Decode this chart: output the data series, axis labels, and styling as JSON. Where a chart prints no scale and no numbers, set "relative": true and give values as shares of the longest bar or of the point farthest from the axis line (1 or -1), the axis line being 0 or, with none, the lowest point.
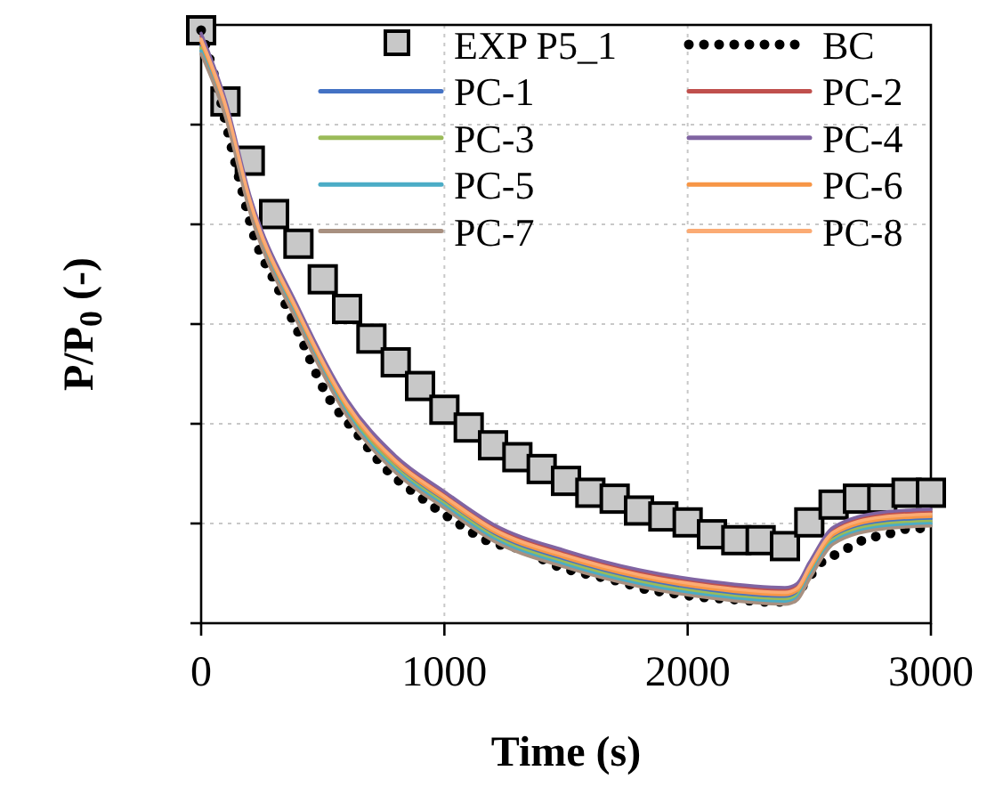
{
  "chart_data": {
    "type": "line",
    "xlabel": "Time (s)",
    "ylabel": "P/P$_{0}$ (-)",
    "relative": true,
    "xlim": [
      0,
      3000
    ],
    "xticks": [
      0,
      1000,
      2000,
      3000
    ],
    "grid": true,
    "legend": "top right",
    "line_style": "solid",
    "series": [
      {
        "name": "EXP P5_1",
        "type": "scatter",
        "marker": "square",
        "color": "#c8c8c8",
        "x": [
          0,
          100,
          200,
          300,
          400,
          500,
          600,
          700,
          800,
          900,
          1000,
          1100,
          1200,
          1300,
          1400,
          1500,
          1600,
          1700,
          1800,
          1900,
          2000,
          2100,
          2200,
          2300,
          2400,
          2500,
          2600,
          2700,
          2800,
          2900,
          3000
        ],
        "values": [
          1,
          0.88,
          0.78,
          0.69,
          0.64,
          0.58,
          0.53,
          0.48,
          0.44,
          0.4,
          0.36,
          0.33,
          0.3,
          0.28,
          0.26,
          0.24,
          0.22,
          0.21,
          0.19,
          0.18,
          0.17,
          0.15,
          0.14,
          0.14,
          0.13,
          0.17,
          0.2,
          0.21,
          0.21,
          0.22,
          0.22
        ]
      },
      {
        "name": "BC",
        "type": "line",
        "line_style": "dotted",
        "color": "#000000",
        "x": [
          0,
          50,
          150,
          220,
          310,
          400,
          510,
          640,
          760,
          910,
          1050,
          1170,
          1350,
          1440,
          1540,
          1640,
          1730,
          1830,
          1930,
          2030,
          2120,
          2220,
          2320,
          2410,
          2480,
          2540,
          2630,
          2720,
          2820,
          2920,
          3000
        ],
        "values": [
          1,
          0.93,
          0.76,
          0.65,
          0.57,
          0.49,
          0.39,
          0.32,
          0.26,
          0.21,
          0.17,
          0.14,
          0.12,
          0.1,
          0.087,
          0.078,
          0.069,
          0.057,
          0.051,
          0.045,
          0.042,
          0.039,
          0.036,
          0.036,
          0.066,
          0.099,
          0.12,
          0.14,
          0.15,
          0.16,
          0.16
        ]
      },
      {
        "name": "PC-1",
        "color": "#4472c4",
        "x": [
          0,
          100,
          200,
          400,
          600,
          800,
          1000,
          1200,
          1500,
          1800,
          2100,
          2400,
          2450,
          2500,
          2600,
          2800,
          3000
        ],
        "values": [
          0.975,
          0.866,
          0.706,
          0.516,
          0.361,
          0.266,
          0.206,
          0.151,
          0.106,
          0.074,
          0.054,
          0.044,
          0.051,
          0.086,
          0.146,
          0.171,
          0.176
        ]
      },
      {
        "name": "PC-2",
        "color": "#c0504d",
        "x": [
          0,
          100,
          200,
          400,
          600,
          800,
          1000,
          1200,
          1500,
          1800,
          2100,
          2400,
          2450,
          2500,
          2600,
          2800,
          3000
        ],
        "values": [
          0.99,
          0.878,
          0.718,
          0.528,
          0.373,
          0.278,
          0.218,
          0.163,
          0.118,
          0.086,
          0.066,
          0.056,
          0.063,
          0.098,
          0.158,
          0.183,
          0.188
        ]
      },
      {
        "name": "PC-3",
        "color": "#9bbb59",
        "x": [
          0,
          100,
          200,
          400,
          600,
          800,
          1000,
          1200,
          1500,
          1800,
          2100,
          2400,
          2450,
          2500,
          2600,
          2800,
          3000
        ],
        "values": [
          0.97,
          0.862,
          0.702,
          0.512,
          0.357,
          0.262,
          0.202,
          0.147,
          0.102,
          0.07,
          0.05,
          0.04,
          0.047,
          0.082,
          0.142,
          0.167,
          0.172
        ]
      },
      {
        "name": "PC-4",
        "color": "#8064a2",
        "x": [
          0,
          100,
          200,
          400,
          600,
          800,
          1000,
          1200,
          1500,
          1800,
          2100,
          2400,
          2450,
          2500,
          2600,
          2800,
          3000
        ],
        "values": [
          0.995,
          0.882,
          0.722,
          0.532,
          0.377,
          0.282,
          0.222,
          0.167,
          0.122,
          0.09,
          0.07,
          0.06,
          0.067,
          0.102,
          0.162,
          0.187,
          0.192
        ]
      },
      {
        "name": "PC-5",
        "color": "#4bacc6",
        "x": [
          0,
          100,
          200,
          400,
          600,
          800,
          1000,
          1200,
          1500,
          1800,
          2100,
          2400,
          2450,
          2500,
          2600,
          2800,
          3000
        ],
        "values": [
          0.965,
          0.858,
          0.698,
          0.508,
          0.353,
          0.258,
          0.198,
          0.143,
          0.098,
          0.066,
          0.046,
          0.036,
          0.043,
          0.078,
          0.138,
          0.163,
          0.168
        ]
      },
      {
        "name": "PC-6",
        "color": "#f79646",
        "x": [
          0,
          100,
          200,
          400,
          600,
          800,
          1000,
          1200,
          1500,
          1800,
          2100,
          2400,
          2450,
          2500,
          2600,
          2800,
          3000
        ],
        "values": [
          0.98,
          0.87,
          0.71,
          0.52,
          0.365,
          0.27,
          0.21,
          0.155,
          0.11,
          0.078,
          0.058,
          0.048,
          0.055,
          0.09,
          0.15,
          0.175,
          0.18
        ]
      },
      {
        "name": "PC-7",
        "color": "#a89080",
        "x": [
          0,
          100,
          200,
          400,
          600,
          800,
          1000,
          1200,
          1500,
          1800,
          2100,
          2400,
          2450,
          2500,
          2600,
          2800,
          3000
        ],
        "values": [
          0.96,
          0.854,
          0.694,
          0.504,
          0.349,
          0.254,
          0.194,
          0.139,
          0.094,
          0.062,
          0.042,
          0.032,
          0.039,
          0.074,
          0.134,
          0.159,
          0.164
        ]
      },
      {
        "name": "PC-8",
        "color": "#fbab74",
        "x": [
          0,
          100,
          200,
          400,
          600,
          800,
          1000,
          1200,
          1500,
          1800,
          2100,
          2400,
          2450,
          2500,
          2600,
          2800,
          3000
        ],
        "values": [
          0.985,
          0.874,
          0.714,
          0.524,
          0.369,
          0.274,
          0.214,
          0.159,
          0.114,
          0.082,
          0.062,
          0.052,
          0.059,
          0.094,
          0.154,
          0.179,
          0.184
        ]
      }
    ]
  }
}
